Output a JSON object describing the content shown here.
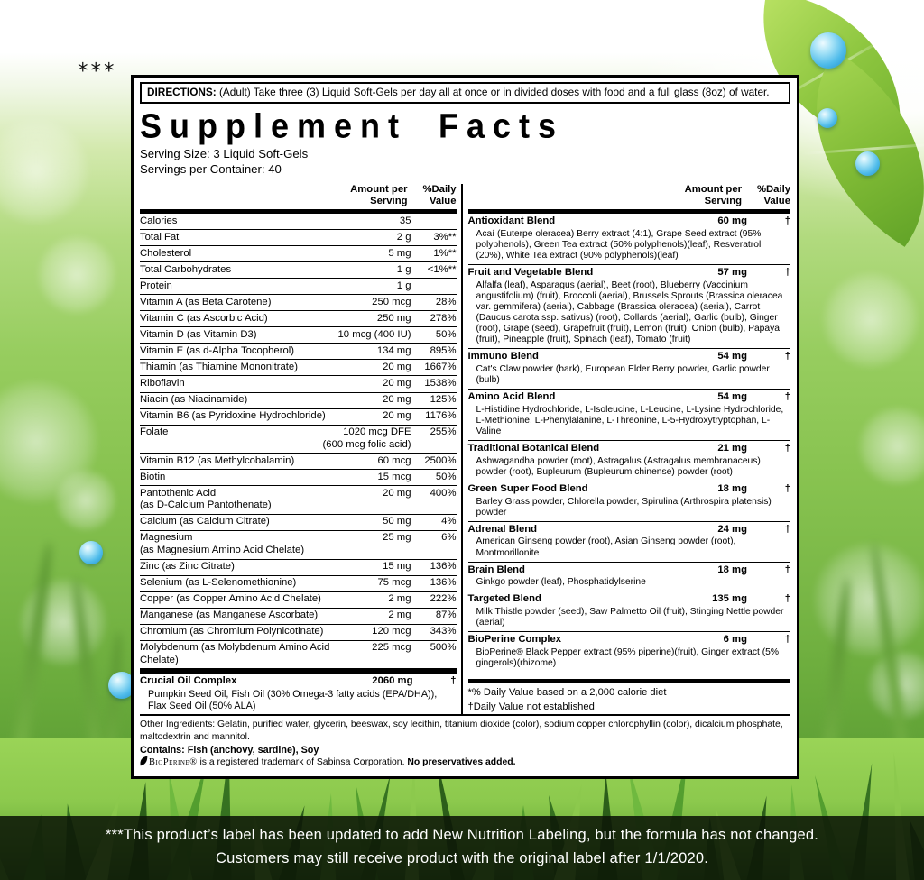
{
  "page": {
    "asterisks": "***",
    "banner": {
      "line1": "***This product’s label has been updated to add New Nutrition Labeling, but the formula has not changed.",
      "line2": "Customers may still receive product with the original label after 1/1/2020."
    }
  },
  "label": {
    "directions_label": "DIRECTIONS:",
    "directions_text": " (Adult) Take three (3) Liquid Soft-Gels per day all at once or in divided doses with food and a full glass (8oz) of water.",
    "title": "Supplement Facts",
    "serving_size": "Serving Size:  3 Liquid Soft-Gels",
    "servings_per_container": "Servings per Container:  40",
    "column_header": {
      "amount": "Amount per Serving",
      "dv": "%Daily Value"
    },
    "left_rows": [
      {
        "name": "Calories",
        "amount": "35",
        "dv": ""
      },
      {
        "name": "Total Fat",
        "amount": "2 g",
        "dv": "3%**"
      },
      {
        "name": "Cholesterol",
        "amount": "5 mg",
        "dv": "1%**"
      },
      {
        "name": "Total Carbohydrates",
        "amount": "1 g",
        "dv": "<1%**"
      },
      {
        "name": "Protein",
        "amount": "1 g",
        "dv": ""
      },
      {
        "name": "Vitamin A (as Beta Carotene)",
        "amount": "250 mcg",
        "dv": "28%"
      },
      {
        "name": "Vitamin C (as Ascorbic Acid)",
        "amount": "250 mg",
        "dv": "278%"
      },
      {
        "name": "Vitamin D (as Vitamin D3)",
        "amount": "10 mcg (400 IU)",
        "dv": "50%"
      },
      {
        "name": "Vitamin E (as d-Alpha Tocopherol)",
        "amount": "134 mg",
        "dv": "895%"
      },
      {
        "name": "Thiamin (as Thiamine Mononitrate)",
        "amount": "20 mg",
        "dv": "1667%"
      },
      {
        "name": "Riboflavin",
        "amount": "20 mg",
        "dv": "1538%"
      },
      {
        "name": "Niacin (as Niacinamide)",
        "amount": "20 mg",
        "dv": "125%"
      },
      {
        "name": "Vitamin B6 (as Pyridoxine Hydrochloride)",
        "amount": "20 mg",
        "dv": "1176%"
      },
      {
        "name": "Folate",
        "amount": "1020 mcg DFE",
        "amount2": "(600 mcg folic acid)",
        "dv": "255%"
      },
      {
        "name": "Vitamin B12 (as Methylcobalamin)",
        "amount": "60 mcg",
        "dv": "2500%"
      },
      {
        "name": "Biotin",
        "amount": "15 mcg",
        "dv": "50%"
      },
      {
        "name": "Pantothenic Acid",
        "name2": "(as D-Calcium Pantothenate)",
        "amount": "20 mg",
        "dv": "400%"
      },
      {
        "name": "Calcium (as Calcium Citrate)",
        "amount": "50 mg",
        "dv": "4%"
      },
      {
        "name": "Magnesium",
        "name2": "(as Magnesium Amino Acid Chelate)",
        "amount": "25 mg",
        "dv": "6%"
      },
      {
        "name": "Zinc (as Zinc Citrate)",
        "amount": "15 mg",
        "dv": "136%"
      },
      {
        "name": "Selenium (as L-Selenomethionine)",
        "amount": "75 mcg",
        "dv": "136%"
      },
      {
        "name": "Copper (as Copper Amino Acid Chelate)",
        "amount": "2 mg",
        "dv": "222%"
      },
      {
        "name": "Manganese (as Manganese Ascorbate)",
        "amount": "2 mg",
        "dv": "87%"
      },
      {
        "name": "Chromium (as Chromium Polynicotinate)",
        "amount": "120 mcg",
        "dv": "343%"
      },
      {
        "name": "Molybdenum (as Molybdenum Amino Acid Chelate)",
        "amount": "225 mcg",
        "dv": "500%"
      }
    ],
    "oil_complex": {
      "name": "Crucial Oil Complex",
      "amount": "2060 mg",
      "dv": "†",
      "ingredients": "Pumpkin Seed Oil, Fish Oil (30% Omega-3 fatty acids (EPA/DHA)), Flax Seed Oil (50% ALA)"
    },
    "blends": [
      {
        "name": "Antioxidant Blend",
        "amount": "60 mg",
        "dv": "†",
        "ingredients": "Acaí (Euterpe oleracea) Berry extract (4:1), Grape Seed extract (95% polyphenols), Green Tea extract (50% polyphenols)(leaf), Resveratrol (20%), White Tea extract (90% polyphenols)(leaf)"
      },
      {
        "name": "Fruit and Vegetable Blend",
        "amount": "57 mg",
        "dv": "†",
        "ingredients": "Alfalfa (leaf), Asparagus (aerial), Beet (root), Blueberry (Vaccinium angustifolium) (fruit), Broccoli (aerial), Brussels Sprouts (Brassica oleracea var. gemmifera) (aerial), Cabbage (Brassica oleracea) (aerial), Carrot (Daucus carota ssp. sativus) (root), Collards (aerial), Garlic (bulb), Ginger (root), Grape (seed), Grapefruit (fruit), Lemon (fruit), Onion (bulb), Papaya (fruit), Pineapple (fruit), Spinach (leaf), Tomato (fruit)"
      },
      {
        "name": "Immuno Blend",
        "amount": "54 mg",
        "dv": "†",
        "ingredients": "Cat's Claw powder (bark), European Elder Berry powder, Garlic powder (bulb)"
      },
      {
        "name": "Amino Acid Blend",
        "amount": "54 mg",
        "dv": "†",
        "ingredients": "L-Histidine Hydrochloride, L-Isoleucine, L-Leucine, L-Lysine Hydrochloride, L-Methionine, L-Phenylalanine, L-Threonine, L-5-Hydroxytryptophan, L-Valine"
      },
      {
        "name": "Traditional Botanical Blend",
        "amount": "21 mg",
        "dv": "†",
        "ingredients": "Ashwagandha powder (root), Astragalus (Astragalus membranaceus) powder (root), Bupleurum (Bupleurum chinense) powder (root)"
      },
      {
        "name": "Green Super Food Blend",
        "amount": "18 mg",
        "dv": "†",
        "ingredients": "Barley Grass powder, Chlorella powder, Spirulina (Arthrospira platensis) powder"
      },
      {
        "name": "Adrenal Blend",
        "amount": "24 mg",
        "dv": "†",
        "ingredients": "American Ginseng powder (root), Asian Ginseng powder (root), Montmorillonite"
      },
      {
        "name": "Brain Blend",
        "amount": "18 mg",
        "dv": "†",
        "ingredients": "Ginkgo powder (leaf), Phosphatidylserine"
      },
      {
        "name": "Targeted Blend",
        "amount": "135 mg",
        "dv": "†",
        "ingredients": "Milk Thistle powder (seed), Saw Palmetto Oil (fruit), Stinging Nettle powder (aerial)"
      },
      {
        "name": "BioPerine Complex",
        "amount": "6 mg",
        "dv": "†",
        "ingredients": "BioPerine® Black Pepper extract (95% piperine)(fruit), Ginger extract (5% gingerols)(rhizome)"
      }
    ],
    "footnote1": "*% Daily Value based on a 2,000 calorie diet",
    "footnote2": "†Daily Value not established",
    "other_ingredients": "Other Ingredients: Gelatin, purified water, glycerin, beeswax, soy lecithin, titanium dioxide (color), sodium copper chlorophyllin (color), dicalcium phosphate, maltodextrin and mannitol.",
    "contains": "Contains: Fish (anchovy, sardine), Soy",
    "trademark_brand": "BioPerine®",
    "trademark_text": " is a registered trademark of Sabinsa Corporation. ",
    "trademark_bold": "No preservatives added."
  },
  "colors": {
    "leaf_green": "#8dc63f",
    "grass_light": "#9ad457",
    "grass_mid": "#69ab38",
    "grass_dark": "#2f6a1d",
    "droplet_blue": "#4ebbea",
    "banner_bg": "#0d1707",
    "label_bg": "#ffffff",
    "text": "#000000"
  }
}
